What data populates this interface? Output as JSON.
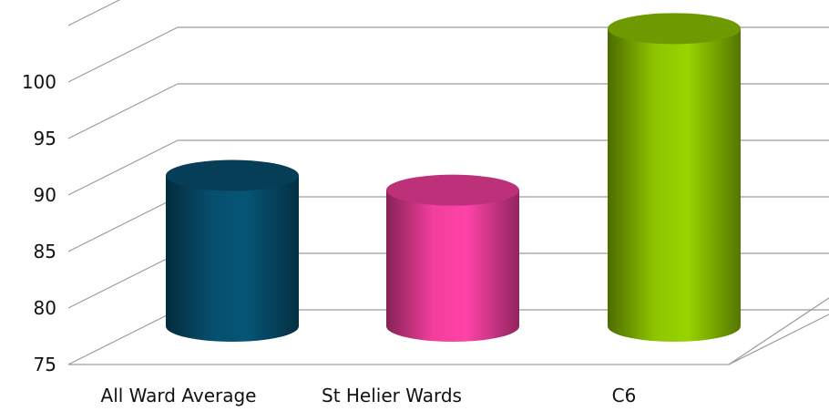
{
  "chart_data": {
    "type": "bar",
    "style": "3d-cylinder",
    "categories": [
      "All Ward Average",
      "St Helier Wards",
      "C6"
    ],
    "values": [
      88.1,
      86.8,
      101.1
    ],
    "colors": [
      "#064F6E",
      "#F23E9C",
      "#8DC400"
    ],
    "ylim": [
      75,
      100
    ],
    "yticks": [
      "75",
      "80",
      "85",
      "90",
      "95",
      "100"
    ],
    "grid": true,
    "legend": "none",
    "title": "",
    "xlabel": "",
    "ylabel": ""
  }
}
